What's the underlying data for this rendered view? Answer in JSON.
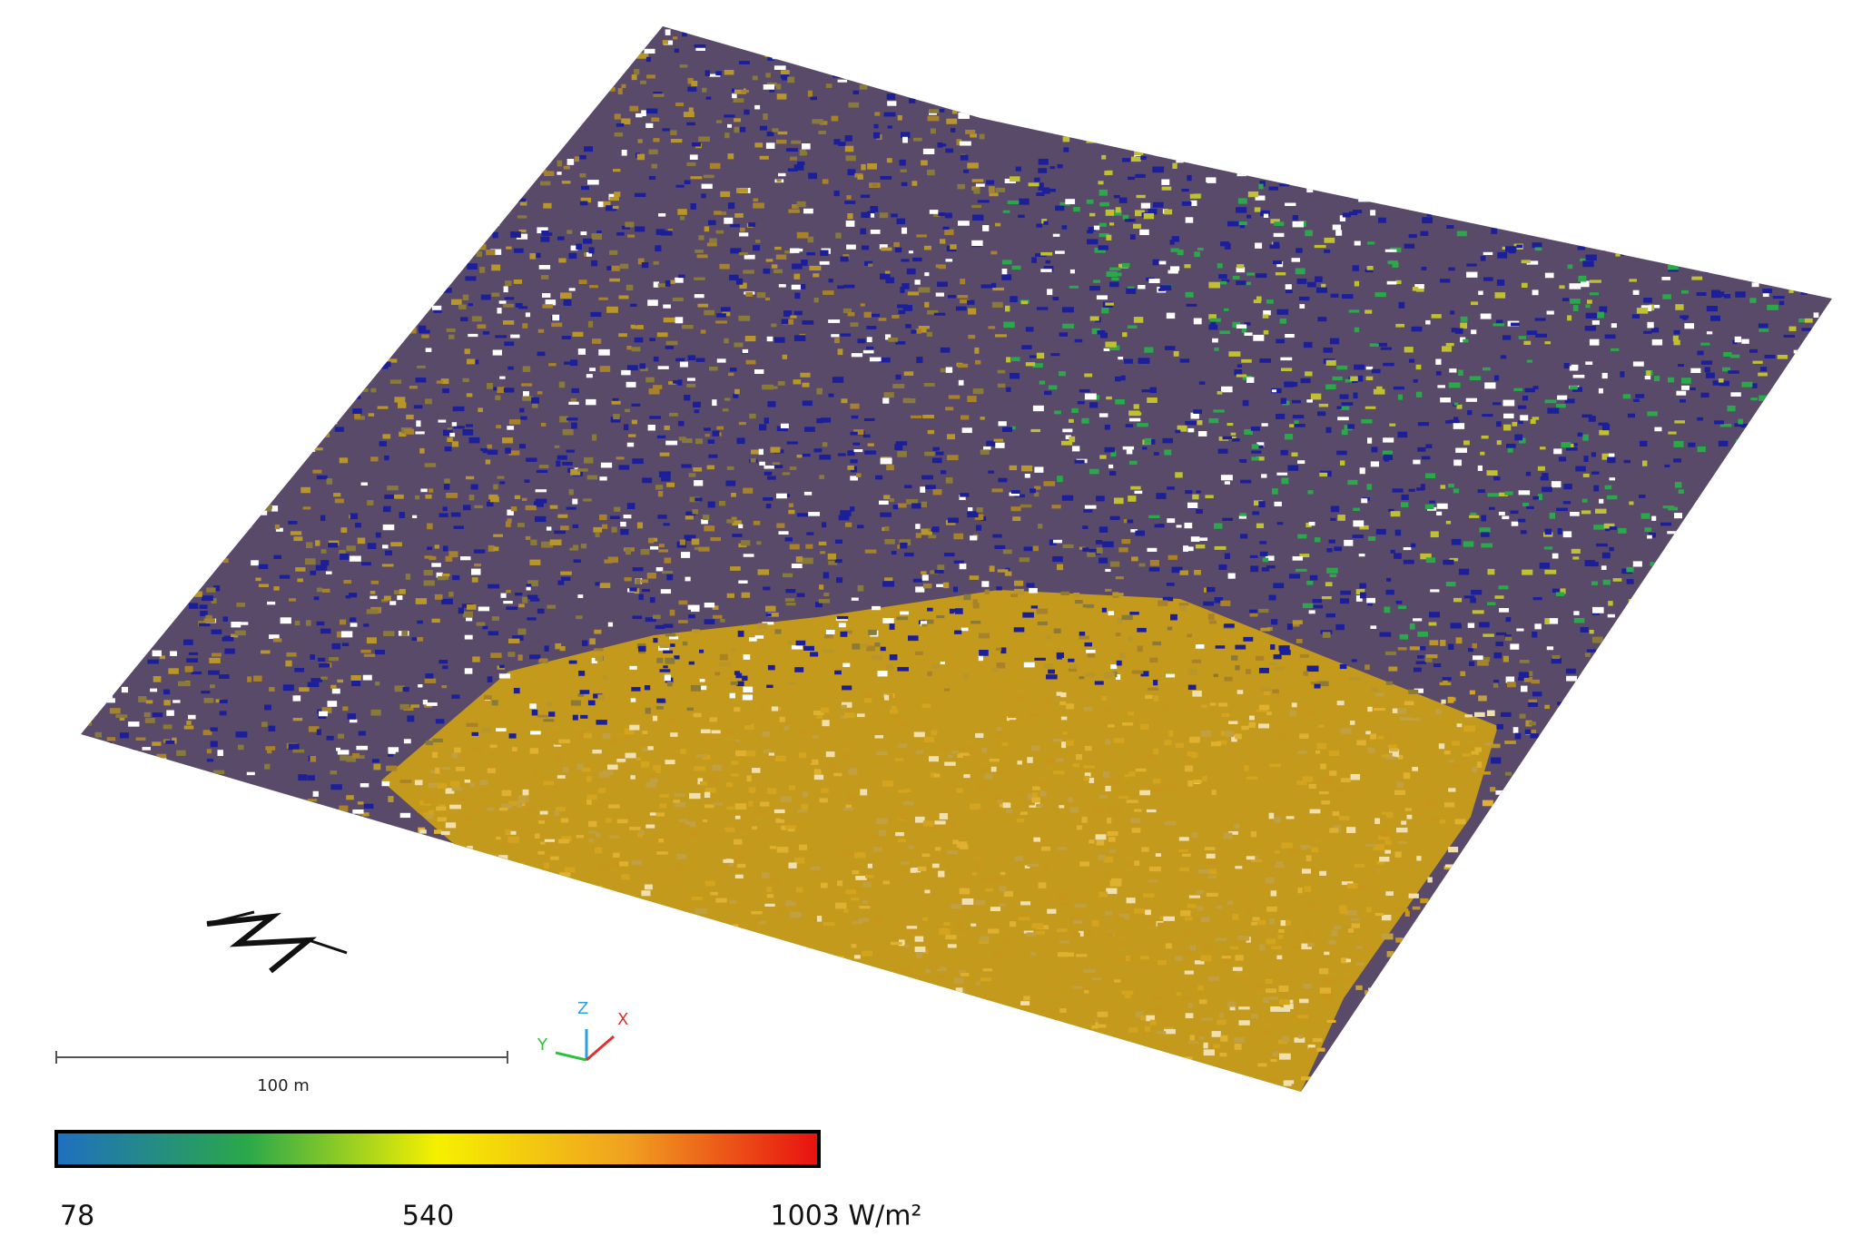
{
  "scale_bar": {
    "label": "100 m"
  },
  "axes_triad": {
    "x": "X",
    "y": "Y",
    "z": "Z"
  },
  "colorbar": {
    "range": [
      78,
      1003
    ],
    "ticks": [
      78,
      540,
      {
        "value": 1003,
        "label": "1003 W/m²"
      }
    ],
    "colors": [
      "#1f6fc0",
      "#2aa84a",
      "#f6f000",
      "#f0a020",
      "#e81010"
    ]
  }
}
